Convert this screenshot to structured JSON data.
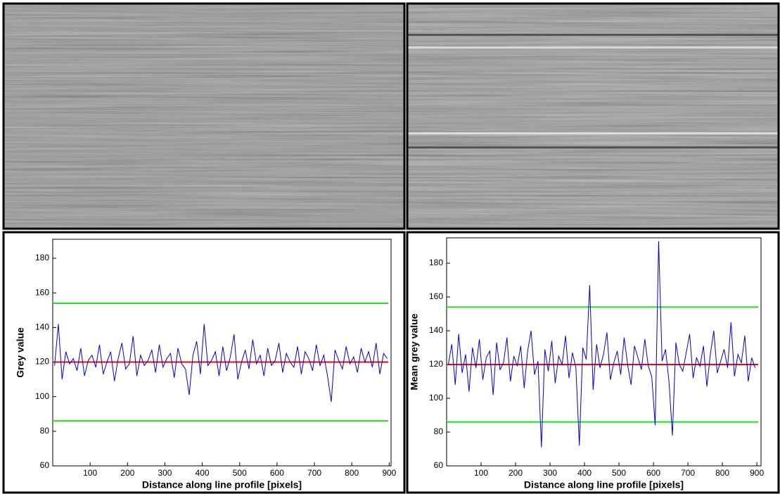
{
  "chart_data": [
    {
      "type": "line",
      "xlabel": "Distance along line profile [pixels]",
      "ylabel": "Grey value",
      "xlim": [
        0,
        905
      ],
      "ylim": [
        60,
        191
      ],
      "xticks": [
        100,
        200,
        300,
        400,
        500,
        600,
        700,
        800,
        900
      ],
      "yticks": [
        60,
        80,
        100,
        120,
        140,
        160,
        180
      ],
      "hlines": [
        {
          "value": 154,
          "color": "#22dd22"
        },
        {
          "value": 120,
          "color": "#ff0000"
        },
        {
          "value": 86,
          "color": "#22dd22"
        }
      ],
      "x": [
        5,
        15,
        25,
        35,
        45,
        55,
        65,
        75,
        85,
        95,
        105,
        115,
        125,
        135,
        145,
        155,
        165,
        175,
        185,
        195,
        205,
        215,
        225,
        235,
        245,
        255,
        265,
        275,
        285,
        295,
        305,
        315,
        325,
        335,
        345,
        355,
        365,
        375,
        385,
        395,
        405,
        415,
        425,
        435,
        445,
        455,
        465,
        475,
        485,
        495,
        505,
        515,
        525,
        535,
        545,
        555,
        565,
        575,
        585,
        595,
        605,
        615,
        625,
        635,
        645,
        655,
        665,
        675,
        685,
        695,
        705,
        715,
        725,
        735,
        745,
        755,
        765,
        775,
        785,
        795,
        805,
        815,
        825,
        835,
        845,
        855,
        865,
        875,
        885,
        895
      ],
      "series": [
        {
          "color": "#0000dd",
          "values": [
            118,
            142,
            110,
            126,
            119,
            122,
            115,
            128,
            112,
            121,
            124,
            117,
            130,
            113,
            120,
            126,
            109,
            122,
            131,
            116,
            119,
            135,
            112,
            124,
            118,
            121,
            127,
            114,
            130,
            117,
            122,
            125,
            111,
            128,
            119,
            116,
            101,
            124,
            132,
            113,
            142,
            118,
            121,
            126,
            112,
            129,
            115,
            123,
            136,
            110,
            120,
            127,
            116,
            133,
            119,
            124,
            112,
            128,
            118,
            121,
            131,
            114,
            125,
            120,
            117,
            129,
            113,
            126,
            122,
            115,
            130,
            118,
            124,
            112,
            97,
            127,
            121,
            116,
            129,
            119,
            123,
            114,
            128,
            120,
            126,
            117,
            131,
            113,
            125,
            122
          ]
        }
      ]
    },
    {
      "type": "line",
      "xlabel": "Distance along line profile [pixels]",
      "ylabel": "Mean grey value",
      "xlim": [
        0,
        912
      ],
      "ylim": [
        60,
        195
      ],
      "xticks": [
        100,
        200,
        300,
        400,
        500,
        600,
        700,
        800,
        900
      ],
      "yticks": [
        60,
        80,
        100,
        120,
        140,
        160,
        180
      ],
      "hlines": [
        {
          "value": 154,
          "color": "#22dd22"
        },
        {
          "value": 120,
          "color": "#ff0000"
        },
        {
          "value": 86,
          "color": "#22dd22"
        }
      ],
      "x": [
        5,
        15,
        25,
        35,
        45,
        55,
        65,
        75,
        85,
        95,
        105,
        115,
        125,
        135,
        145,
        155,
        165,
        175,
        185,
        195,
        205,
        215,
        225,
        235,
        245,
        255,
        265,
        275,
        285,
        295,
        305,
        315,
        325,
        335,
        345,
        355,
        365,
        375,
        385,
        395,
        405,
        415,
        425,
        435,
        445,
        455,
        465,
        475,
        485,
        495,
        505,
        515,
        525,
        535,
        545,
        555,
        565,
        575,
        585,
        595,
        605,
        615,
        625,
        635,
        645,
        655,
        665,
        675,
        685,
        695,
        705,
        715,
        725,
        735,
        745,
        755,
        765,
        775,
        785,
        795,
        805,
        815,
        825,
        835,
        845,
        855,
        865,
        875,
        885,
        895
      ],
      "series": [
        {
          "color": "#0000dd",
          "values": [
            120,
            132,
            108,
            138,
            115,
            126,
            104,
            130,
            118,
            135,
            111,
            124,
            128,
            102,
            133,
            117,
            121,
            136,
            110,
            125,
            119,
            131,
            106,
            128,
            140,
            114,
            122,
            71,
            129,
            116,
            134,
            109,
            125,
            120,
            137,
            112,
            127,
            118,
            72,
            130,
            123,
            167,
            105,
            132,
            118,
            126,
            139,
            111,
            121,
            128,
            114,
            136,
            120,
            108,
            131,
            124,
            117,
            135,
            119,
            113,
            84,
            193,
            122,
            129,
            110,
            78,
            133,
            120,
            116,
            127,
            138,
            112,
            124,
            119,
            131,
            107,
            126,
            140,
            115,
            122,
            129,
            118,
            145,
            113,
            126,
            121,
            137,
            110,
            124,
            118
          ]
        }
      ]
    }
  ]
}
